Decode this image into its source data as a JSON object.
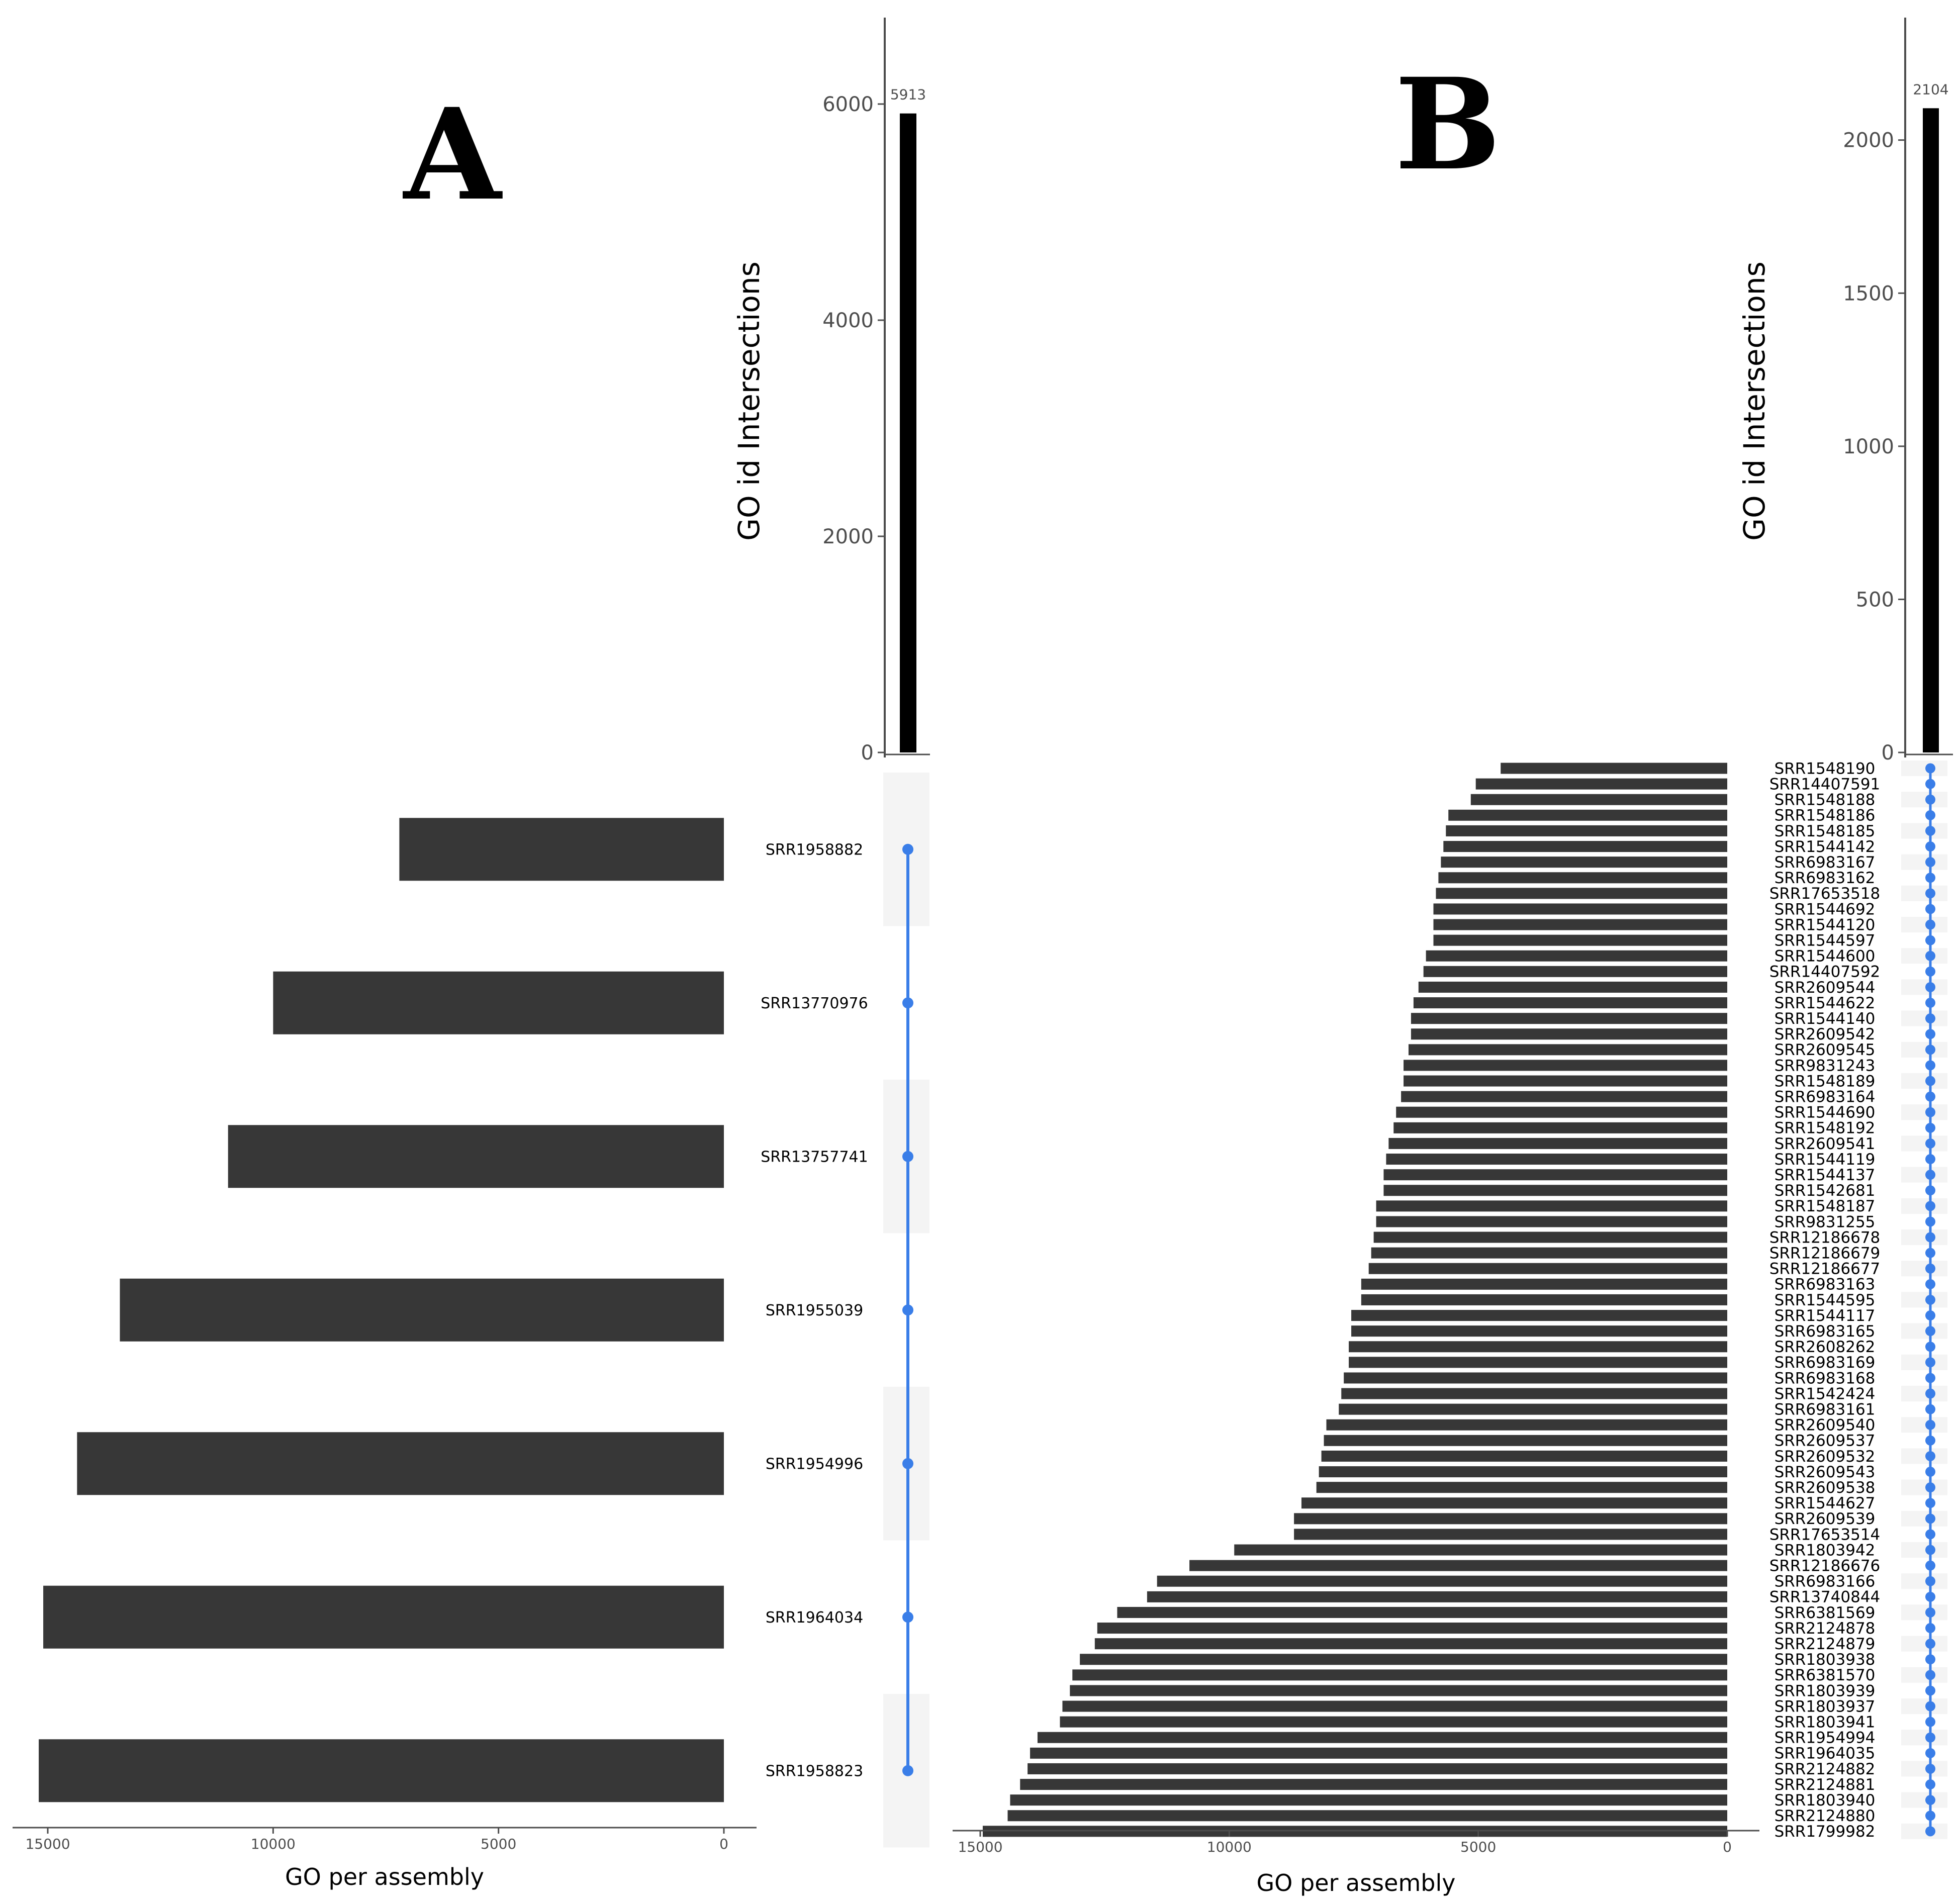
{
  "figure": {
    "panels": [
      {
        "letter": "A"
      },
      {
        "letter": "B"
      }
    ]
  },
  "colors": {
    "set_bar": "#373737",
    "intersection_bar": "#000000",
    "dot": "#3a7ee8",
    "stripe": "#f4f4f4",
    "axis": "#4d4d4d"
  },
  "chart_data": [
    {
      "panel": "A",
      "type": "bar",
      "title": "",
      "intersection": {
        "ylabel": "GO id Intersections",
        "ylim": [
          0,
          6800
        ],
        "yticks": [
          0,
          2000,
          4000,
          6000
        ],
        "values": [
          5913
        ],
        "value_labels": [
          "5913"
        ]
      },
      "set_sizes": {
        "xlabel": "GO per assembly",
        "xlim": [
          16000,
          0
        ],
        "xticks": [
          15000,
          10000,
          5000,
          0
        ],
        "categories": [
          "SRR1958882",
          "SRR13770976",
          "SRR13757741",
          "SRR1955039",
          "SRR1954996",
          "SRR1964034",
          "SRR1958823"
        ],
        "values": [
          7200,
          10000,
          11000,
          13400,
          14350,
          15100,
          15200
        ]
      }
    },
    {
      "panel": "B",
      "type": "bar",
      "title": "",
      "intersection": {
        "ylabel": "GO id Intersections",
        "ylim": [
          0,
          2400
        ],
        "yticks": [
          0,
          500,
          1000,
          1500,
          2000
        ],
        "values": [
          2104
        ],
        "value_labels": [
          "2104"
        ]
      },
      "set_sizes": {
        "xlabel": "GO per assembly",
        "xlim": [
          15500,
          0
        ],
        "xticks": [
          15000,
          10000,
          5000,
          0
        ],
        "categories": [
          "SRR1548190",
          "SRR14407591",
          "SRR1548188",
          "SRR1548186",
          "SRR1548185",
          "SRR1544142",
          "SRR6983167",
          "SRR6983162",
          "SRR17653518",
          "SRR1544692",
          "SRR1544120",
          "SRR1544597",
          "SRR1544600",
          "SRR14407592",
          "SRR2609544",
          "SRR1544622",
          "SRR1544140",
          "SRR2609542",
          "SRR2609545",
          "SRR9831243",
          "SRR1548189",
          "SRR6983164",
          "SRR1544690",
          "SRR1548192",
          "SRR2609541",
          "SRR1544119",
          "SRR1544137",
          "SRR1542681",
          "SRR1548187",
          "SRR9831255",
          "SRR12186678",
          "SRR12186679",
          "SRR12186677",
          "SRR6983163",
          "SRR1544595",
          "SRR1544117",
          "SRR6983165",
          "SRR2608262",
          "SRR6983169",
          "SRR6983168",
          "SRR1542424",
          "SRR6983161",
          "SRR2609540",
          "SRR2609537",
          "SRR2609532",
          "SRR2609543",
          "SRR2609538",
          "SRR1544627",
          "SRR2609539",
          "SRR17653514",
          "SRR1803942",
          "SRR12186676",
          "SRR6983166",
          "SRR13740844",
          "SRR6381569",
          "SRR2124878",
          "SRR2124879",
          "SRR1803938",
          "SRR6381570",
          "SRR1803939",
          "SRR1803937",
          "SRR1803941",
          "SRR1954994",
          "SRR1964035",
          "SRR2124882",
          "SRR2124881",
          "SRR1803940",
          "SRR2124880",
          "SRR1799982"
        ],
        "values": [
          4550,
          5050,
          5150,
          5600,
          5650,
          5700,
          5750,
          5800,
          5850,
          5900,
          5900,
          5900,
          6050,
          6100,
          6200,
          6300,
          6350,
          6350,
          6400,
          6500,
          6500,
          6550,
          6650,
          6700,
          6800,
          6850,
          6900,
          6900,
          7050,
          7050,
          7100,
          7150,
          7200,
          7350,
          7350,
          7550,
          7550,
          7600,
          7600,
          7700,
          7750,
          7800,
          8050,
          8100,
          8150,
          8200,
          8250,
          8550,
          8700,
          8700,
          9900,
          10800,
          11450,
          11650,
          12250,
          12650,
          12700,
          13000,
          13150,
          13200,
          13350,
          13400,
          13850,
          14000,
          14050,
          14200,
          14400,
          14450,
          14950
        ]
      }
    }
  ]
}
